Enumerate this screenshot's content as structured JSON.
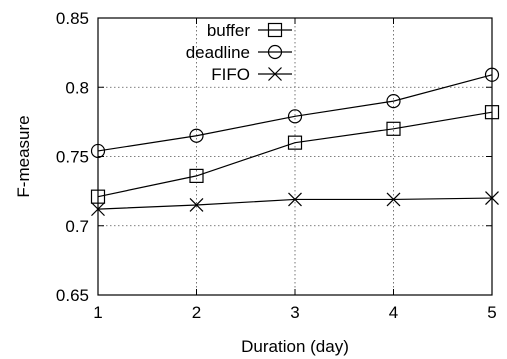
{
  "chart_data": {
    "type": "line",
    "title": "",
    "xlabel": "Duration (day)",
    "ylabel": "F-measure",
    "x": [
      1,
      2,
      3,
      4,
      5
    ],
    "xlim": [
      1,
      5
    ],
    "ylim": [
      0.65,
      0.85
    ],
    "x_ticks": [
      "1",
      "2",
      "3",
      "4",
      "5"
    ],
    "y_ticks": [
      "0.65",
      "0.7",
      "0.75",
      "0.8",
      "0.85"
    ],
    "grid": true,
    "legend_position": "top-left",
    "series": [
      {
        "name": "buffer",
        "marker": "square",
        "values": [
          0.721,
          0.736,
          0.76,
          0.77,
          0.782
        ]
      },
      {
        "name": "deadline",
        "marker": "circle",
        "values": [
          0.754,
          0.765,
          0.779,
          0.79,
          0.809
        ]
      },
      {
        "name": "FIFO",
        "marker": "cross",
        "values": [
          0.712,
          0.715,
          0.719,
          0.719,
          0.72
        ]
      }
    ],
    "colors": {
      "line": "#000000",
      "grid": "#555555",
      "background": "#ffffff"
    }
  }
}
